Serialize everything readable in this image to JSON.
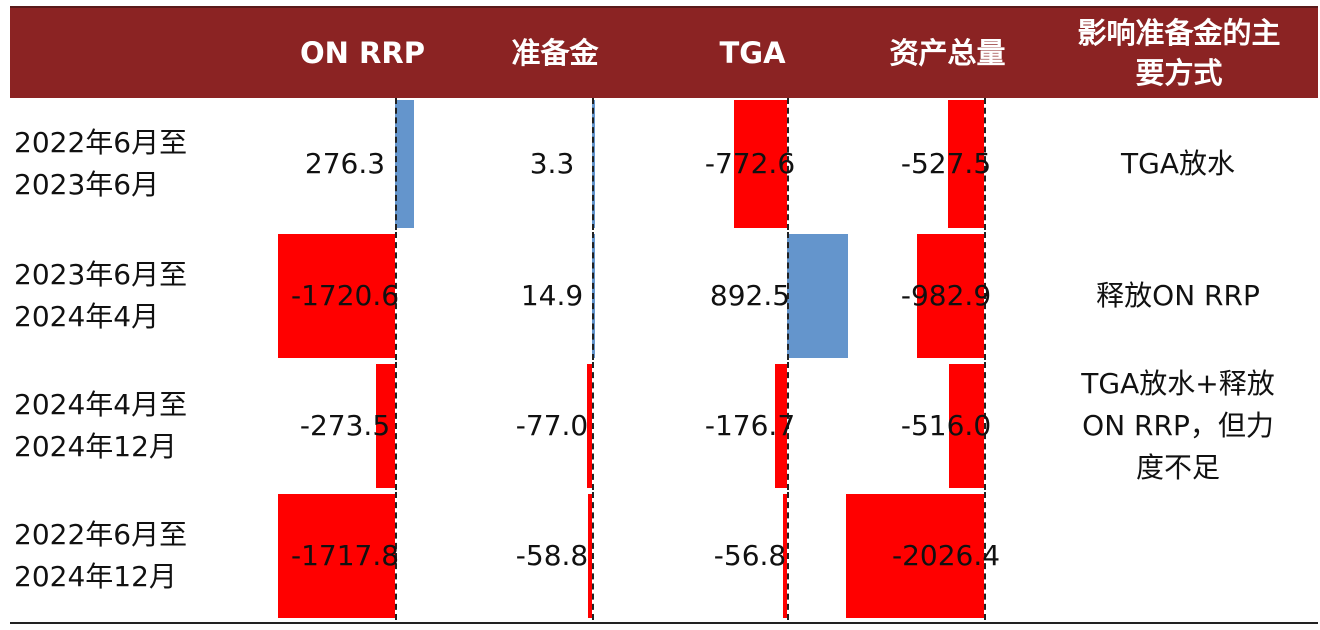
{
  "table": {
    "headers": [
      {
        "label": "",
        "lines": [
          ""
        ]
      },
      {
        "label": "ON RRP",
        "lines": [
          "ON RRP"
        ]
      },
      {
        "label": "准备金",
        "lines": [
          "准备金"
        ]
      },
      {
        "label": "TGA",
        "lines": [
          "TGA"
        ]
      },
      {
        "label": "资产总量",
        "lines": [
          "资产总量"
        ]
      },
      {
        "label": "影响准备金的主要方式",
        "lines": [
          "影响准备金的主",
          "要方式"
        ]
      }
    ],
    "rows": [
      {
        "period_lines": [
          "2022年6月至",
          "2023年6月"
        ],
        "method_lines": [
          "TGA放水"
        ]
      },
      {
        "period_lines": [
          "2023年6月至",
          "2024年4月"
        ],
        "method_lines": [
          "释放ON RRP"
        ]
      },
      {
        "period_lines": [
          "2024年4月至",
          "2024年12月"
        ],
        "method_lines": [
          "TGA放水+释放",
          "ON RRP，但力",
          "度不足"
        ]
      },
      {
        "period_lines": [
          "2022年6月至",
          "2024年12月"
        ],
        "method_lines": [
          ""
        ]
      }
    ]
  },
  "chart_data": {
    "type": "table",
    "columns": [
      "ON RRP",
      "准备金",
      "TGA",
      "资产总量"
    ],
    "rows": [
      "2022年6月至2023年6月",
      "2023年6月至2024年4月",
      "2024年4月至2024年12月",
      "2022年6月至2024年12月"
    ],
    "values": [
      [
        276.3,
        3.3,
        -772.6,
        -527.5
      ],
      [
        -1720.6,
        14.9,
        892.5,
        -982.9
      ],
      [
        -273.5,
        -77.0,
        -176.7,
        -516.0
      ],
      [
        -1717.8,
        -58.8,
        -56.8,
        -2026.4
      ]
    ],
    "labels": [
      [
        "276.3",
        "3.3",
        "-772.6",
        "-527.5"
      ],
      [
        "-1720.6",
        "14.9",
        "892.5",
        "-982.9"
      ],
      [
        "-273.5",
        "-77.0",
        "-176.7",
        "-516.0"
      ],
      [
        "-1717.8",
        "-58.8",
        "-56.8",
        "-2026.4"
      ]
    ],
    "colors": {
      "positive": "#6495cc",
      "negative": "#ff0000",
      "header_bg": "#8b2323",
      "header_text": "#ffffff"
    }
  }
}
